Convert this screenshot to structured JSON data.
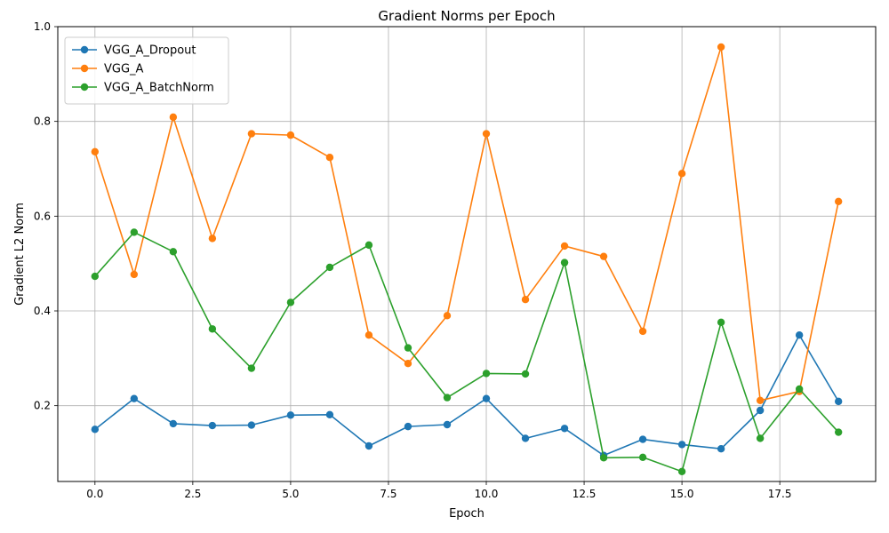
{
  "chart_data": {
    "type": "line",
    "title": "Gradient Norms per Epoch",
    "xlabel": "Epoch",
    "ylabel": "Gradient L2 Norm",
    "xlim": [
      -0.95,
      19.95
    ],
    "ylim": [
      0.04,
      1.0
    ],
    "x_ticks": [
      0.0,
      2.5,
      5.0,
      7.5,
      10.0,
      12.5,
      15.0,
      17.5
    ],
    "x_tick_labels": [
      "0.0",
      "2.5",
      "5.0",
      "7.5",
      "10.0",
      "12.5",
      "15.0",
      "17.5"
    ],
    "y_ticks": [
      0.2,
      0.4,
      0.6,
      0.8,
      1.0
    ],
    "y_tick_labels": [
      "0.2",
      "0.4",
      "0.6",
      "0.8",
      "1.0"
    ],
    "grid": true,
    "legend_position": "top-left",
    "x": [
      0,
      1,
      2,
      3,
      4,
      5,
      6,
      7,
      8,
      9,
      10,
      11,
      12,
      13,
      14,
      15,
      16,
      17,
      18,
      19
    ],
    "series": [
      {
        "name": "VGG_A_Dropout",
        "color": "#1f77b4",
        "values": [
          0.15,
          0.215,
          0.162,
          0.158,
          0.159,
          0.18,
          0.181,
          0.115,
          0.156,
          0.16,
          0.215,
          0.131,
          0.152,
          0.095,
          0.129,
          0.118,
          0.109,
          0.19,
          0.349,
          0.209
        ]
      },
      {
        "name": "VGG_A",
        "color": "#ff7f0e",
        "values": [
          0.736,
          0.477,
          0.809,
          0.553,
          0.774,
          0.771,
          0.724,
          0.349,
          0.289,
          0.39,
          0.774,
          0.424,
          0.537,
          0.515,
          0.357,
          0.69,
          0.957,
          0.211,
          0.23,
          0.631
        ]
      },
      {
        "name": "VGG_A_BatchNorm",
        "color": "#2ca02c",
        "values": [
          0.473,
          0.566,
          0.525,
          0.362,
          0.279,
          0.418,
          0.492,
          0.539,
          0.322,
          0.217,
          0.268,
          0.267,
          0.502,
          0.09,
          0.091,
          0.061,
          0.376,
          0.131,
          0.235,
          0.144
        ]
      }
    ]
  }
}
